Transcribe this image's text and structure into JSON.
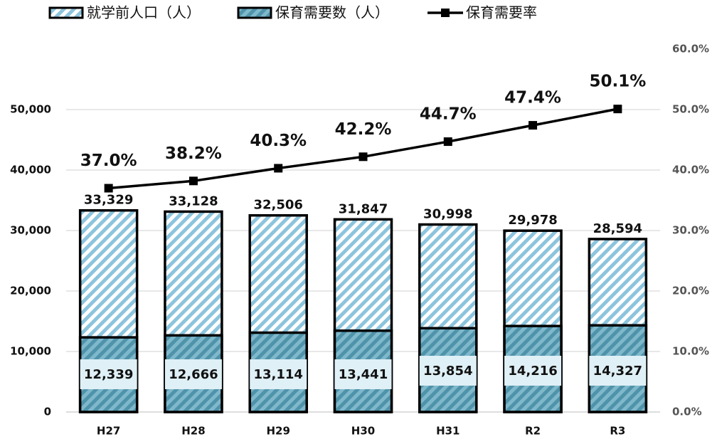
{
  "chart_data": {
    "type": "bar",
    "categories": [
      "H27",
      "H28",
      "H29",
      "H30",
      "H31",
      "R2",
      "R3"
    ],
    "series": [
      {
        "name": "就学前人口（人）",
        "color": "#8cc4dd",
        "values": [
          33329,
          33128,
          32506,
          31847,
          30998,
          29978,
          28594
        ],
        "value_labels": [
          "33,329",
          "33,128",
          "32,506",
          "31,847",
          "30,998",
          "29,978",
          "28,594"
        ]
      },
      {
        "name": "保育需要数（人）",
        "color": "#5a9fb6",
        "values": [
          12339,
          12666,
          13114,
          13441,
          13854,
          14216,
          14327
        ],
        "value_labels": [
          "12,339",
          "12,666",
          "13,114",
          "13,441",
          "13,854",
          "14,216",
          "14,327"
        ]
      },
      {
        "name": "保育需要率",
        "type": "line",
        "axis": "y2",
        "color": "#000000",
        "values": [
          37.0,
          38.2,
          40.3,
          42.2,
          44.7,
          47.4,
          50.1
        ],
        "value_labels": [
          "37.0%",
          "38.2%",
          "40.3%",
          "42.2%",
          "44.7%",
          "47.4%",
          "50.1%"
        ]
      }
    ],
    "ylim": [
      0,
      60000
    ],
    "yticks": [
      0,
      {
        "value": 10000,
        "label": "10,000"
      },
      {
        "value": 20000,
        "label": "20,000"
      },
      {
        "value": 30000,
        "label": "30,000"
      },
      {
        "value": 40000,
        "label": "40,000"
      },
      {
        "value": 50000,
        "label": "50,000"
      }
    ],
    "y2lim": [
      0,
      60
    ],
    "y2ticks": [
      {
        "value": 0,
        "label": "0.0%"
      },
      {
        "value": 10,
        "label": "10.0%"
      },
      {
        "value": 20,
        "label": "20.0%"
      },
      {
        "value": 30,
        "label": "30.0%"
      },
      {
        "value": 40,
        "label": "40.0%"
      },
      {
        "value": 50,
        "label": "50.0%"
      },
      {
        "value": 60,
        "label": "60.0%"
      }
    ],
    "grid": true,
    "legend": "top"
  }
}
